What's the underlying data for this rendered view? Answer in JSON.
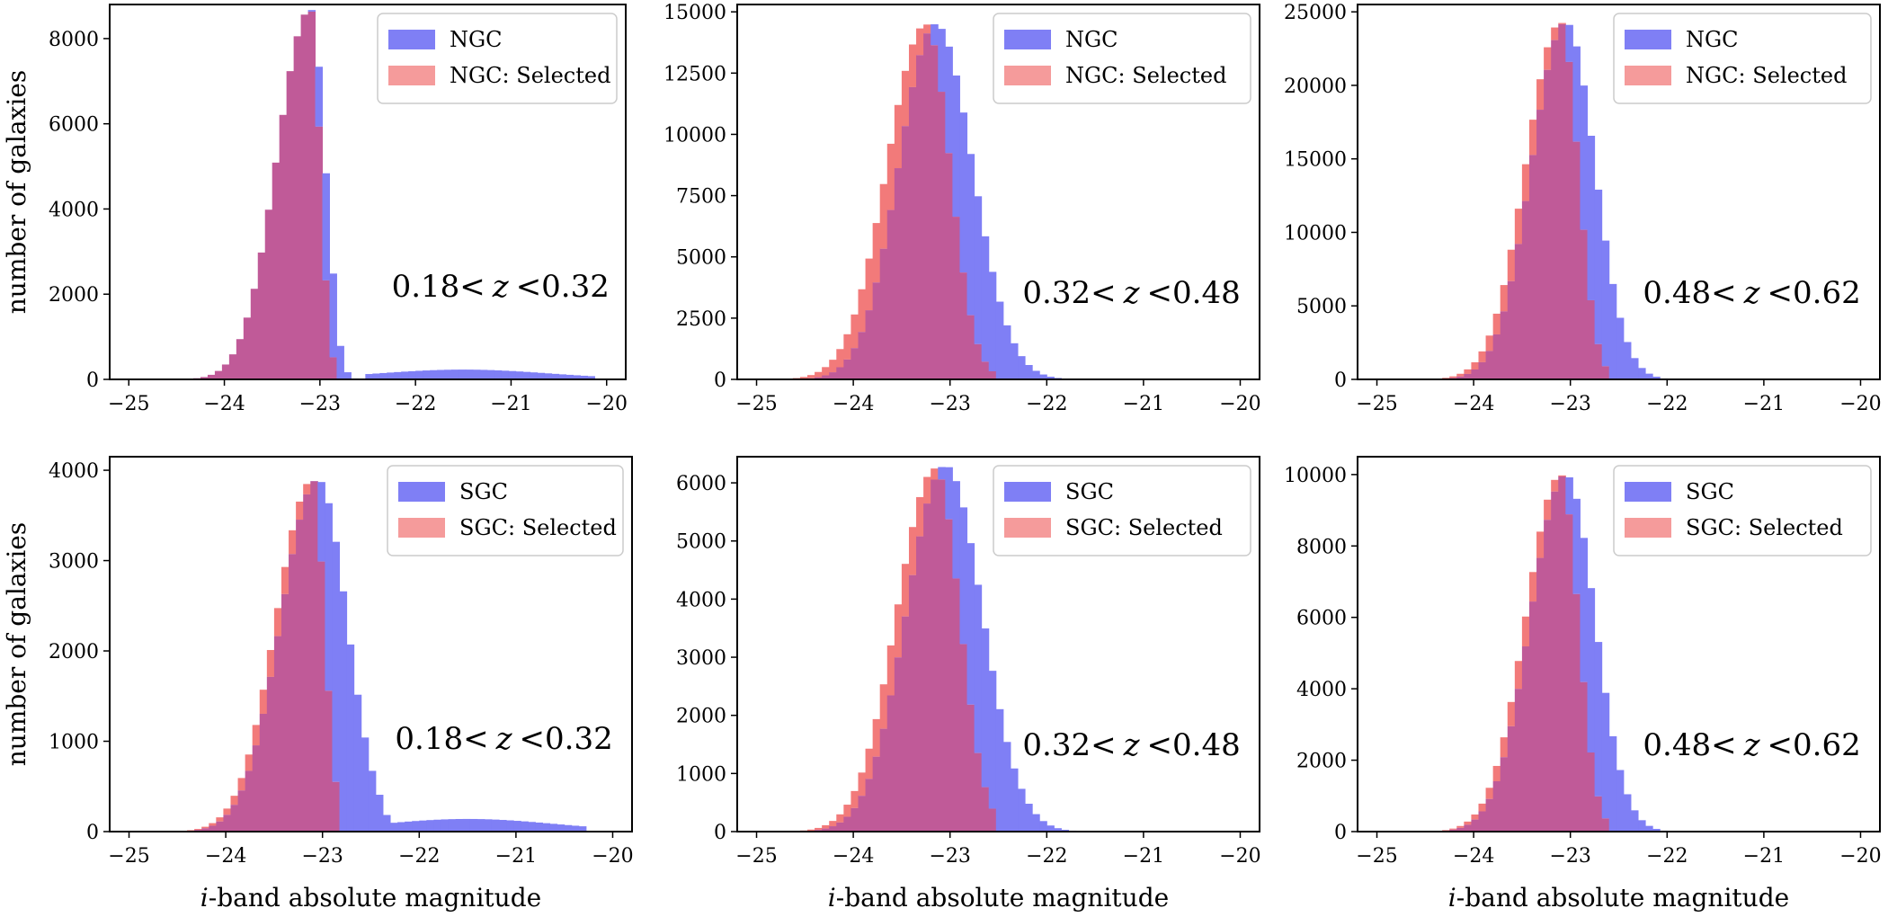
{
  "figure": {
    "ylabel": "number of galaxies",
    "xlabel_italic": "i",
    "xlabel_rest": "-band absolute magnitude",
    "xticks": [
      -25,
      -24,
      -23,
      -22,
      -21,
      -20
    ],
    "xtick_labels": [
      "−25",
      "−24",
      "−23",
      "−22",
      "−21",
      "−20"
    ],
    "colors": {
      "full": "#7f7ff5",
      "selected": "#f27a7a",
      "overlap": "#c05a98"
    },
    "annotation_var": "z"
  },
  "chart_data": [
    {
      "type": "histogram",
      "panel": "NGC 0.18<z<0.32",
      "legend": [
        "NGC",
        "NGC: Selected"
      ],
      "annotation": {
        "left": "0.18<",
        "var": "z",
        "right": "<0.32"
      },
      "xlim": [
        -25.2,
        -19.8
      ],
      "ylim": [
        0,
        8800
      ],
      "yticks": [
        0,
        2000,
        4000,
        6000,
        8000
      ],
      "full_peak": {
        "x": -23.1,
        "y": 8700
      },
      "full_sigma": [
        0.35,
        0.15
      ],
      "full_cut": -22.85,
      "sel_peak": {
        "x": -23.1,
        "y": 8700
      },
      "sel_sigma": [
        0.35,
        0.1
      ],
      "sel_cut": -22.85,
      "tail": {
        "center": -21.5,
        "height": 230,
        "width": 0.9,
        "start": -22.5,
        "end": -20.1
      }
    },
    {
      "type": "histogram",
      "panel": "NGC 0.32<z<0.48",
      "legend": [
        "NGC",
        "NGC: Selected"
      ],
      "annotation": {
        "left": "0.32<",
        "var": "z",
        "right": "<0.48"
      },
      "xlim": [
        -25.2,
        -19.8
      ],
      "ylim": [
        0,
        15300
      ],
      "yticks": [
        0,
        2500,
        5000,
        7500,
        10000,
        12500,
        15000
      ],
      "full_peak": {
        "x": -23.15,
        "y": 14500
      },
      "full_sigma": [
        0.38,
        0.38
      ],
      "full_cut": -21.5,
      "sel_peak": {
        "x": -23.25,
        "y": 14500
      },
      "sel_sigma": [
        0.4,
        0.25
      ],
      "sel_cut": -22.5,
      "tail": null
    },
    {
      "type": "histogram",
      "panel": "NGC 0.48<z<0.62",
      "legend": [
        "NGC",
        "NGC: Selected"
      ],
      "annotation": {
        "left": "0.48<",
        "var": "z",
        "right": "<0.62"
      },
      "xlim": [
        -25.2,
        -19.8
      ],
      "ylim": [
        0,
        25500
      ],
      "yticks": [
        0,
        5000,
        10000,
        15000,
        20000,
        25000
      ],
      "full_peak": {
        "x": -23.05,
        "y": 24300
      },
      "full_sigma": [
        0.35,
        0.3
      ],
      "full_cut": -22.1,
      "sel_peak": {
        "x": -23.1,
        "y": 24300
      },
      "sel_sigma": [
        0.36,
        0.18
      ],
      "sel_cut": -22.6,
      "tail": null
    },
    {
      "type": "histogram",
      "panel": "SGC 0.18<z<0.32",
      "legend": [
        "SGC",
        "SGC: Selected"
      ],
      "annotation": {
        "left": "0.18<",
        "var": "z",
        "right": "<0.32"
      },
      "xlim": [
        -25.2,
        -19.8
      ],
      "ylim": [
        0,
        4150
      ],
      "yticks": [
        0,
        1000,
        2000,
        3000,
        4000
      ],
      "full_peak": {
        "x": -23.05,
        "y": 3900
      },
      "full_sigma": [
        0.38,
        0.3
      ],
      "full_cut": -22.4,
      "sel_peak": {
        "x": -23.1,
        "y": 3900
      },
      "sel_sigma": [
        0.38,
        0.12
      ],
      "sel_cut": -22.85,
      "tail": {
        "center": -21.5,
        "height": 140,
        "width": 0.9,
        "start": -22.4,
        "end": -20.3
      }
    },
    {
      "type": "histogram",
      "panel": "SGC 0.32<z<0.48",
      "legend": [
        "SGC",
        "SGC: Selected"
      ],
      "annotation": {
        "left": "0.32<",
        "var": "z",
        "right": "<0.48"
      },
      "xlim": [
        -25.2,
        -19.8
      ],
      "ylim": [
        0,
        6450
      ],
      "yticks": [
        0,
        1000,
        2000,
        3000,
        4000,
        5000,
        6000
      ],
      "full_peak": {
        "x": -23.05,
        "y": 6300
      },
      "full_sigma": [
        0.4,
        0.38
      ],
      "full_cut": -21.5,
      "sel_peak": {
        "x": -23.15,
        "y": 6250
      },
      "sel_sigma": [
        0.4,
        0.25
      ],
      "sel_cut": -22.5,
      "tail": null
    },
    {
      "type": "histogram",
      "panel": "SGC 0.48<z<0.62",
      "legend": [
        "SGC",
        "SGC: Selected"
      ],
      "annotation": {
        "left": "0.48<",
        "var": "z",
        "right": "<0.62"
      },
      "xlim": [
        -25.2,
        -19.8
      ],
      "ylim": [
        0,
        10500
      ],
      "yticks": [
        0,
        2000,
        4000,
        6000,
        8000,
        10000
      ],
      "full_peak": {
        "x": -23.05,
        "y": 10000
      },
      "full_sigma": [
        0.36,
        0.3
      ],
      "full_cut": -22.1,
      "sel_peak": {
        "x": -23.1,
        "y": 10000
      },
      "sel_sigma": [
        0.36,
        0.18
      ],
      "sel_cut": -22.6,
      "tail": null
    }
  ]
}
